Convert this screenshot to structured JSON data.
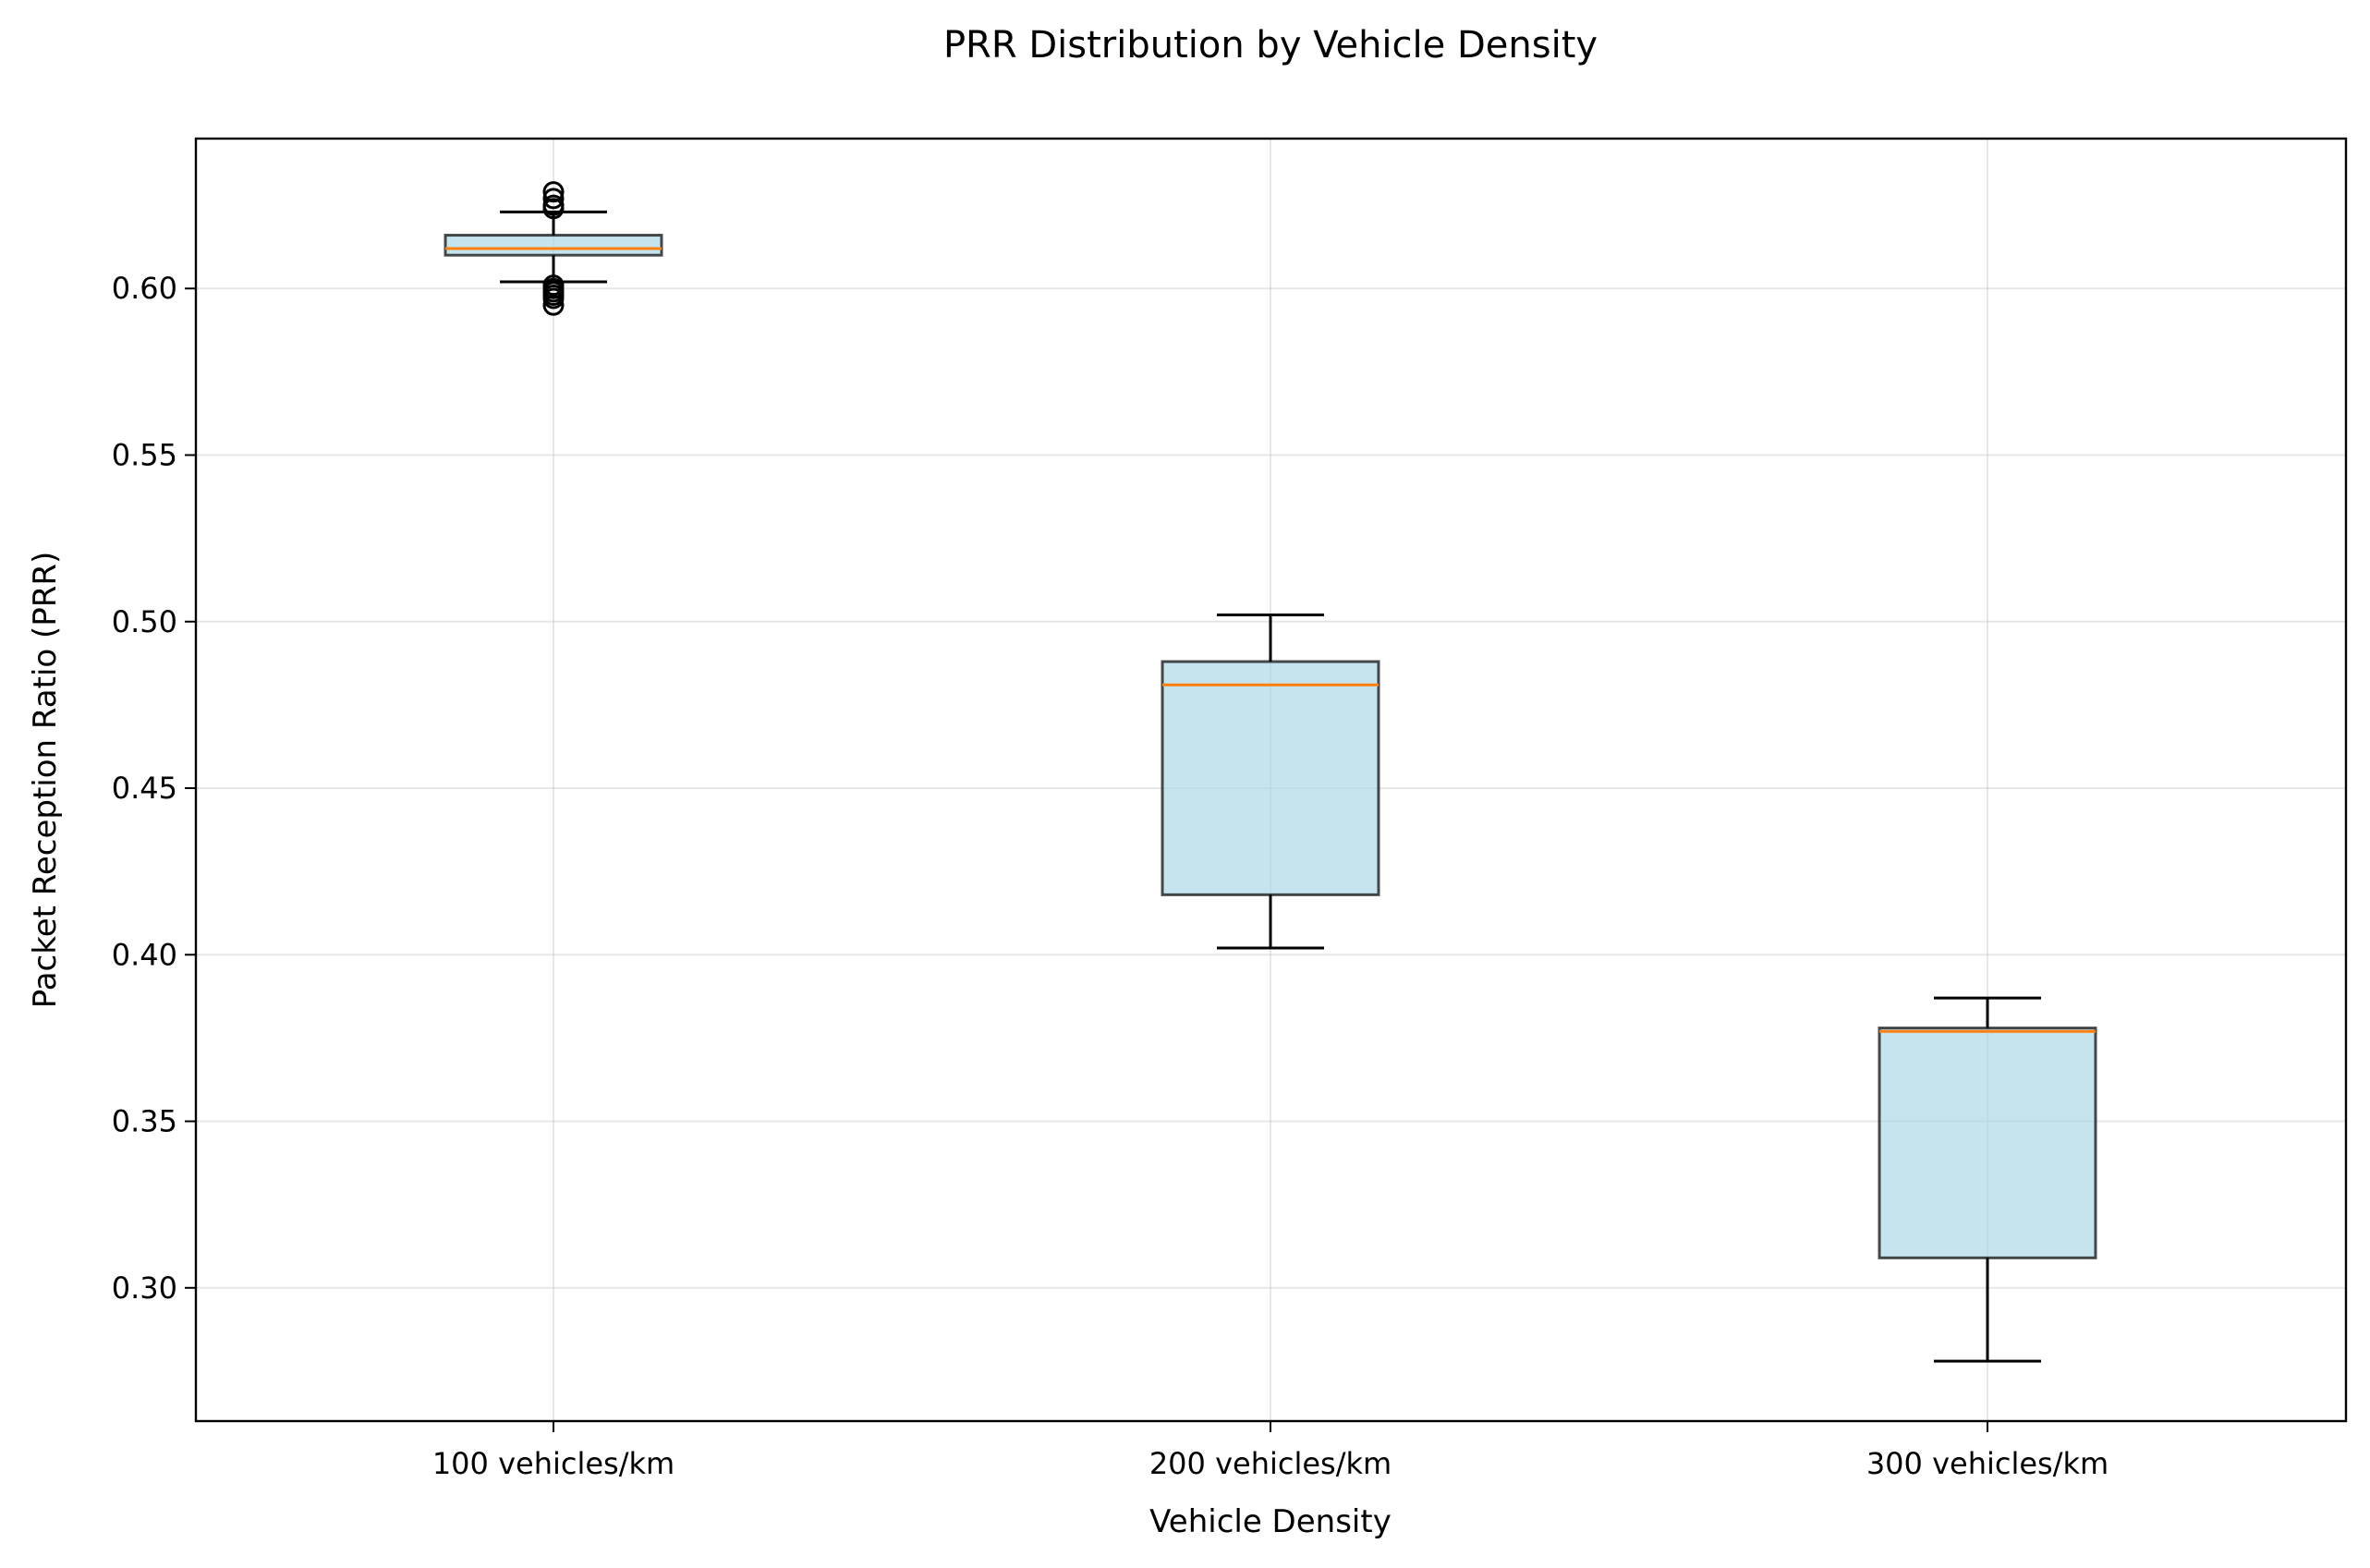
{
  "chart_data": {
    "type": "box",
    "title": "PRR Distribution by Vehicle Density",
    "xlabel": "Vehicle Density",
    "ylabel": "Packet Reception Ratio (PRR)",
    "ylim": [
      0.26,
      0.645
    ],
    "yticks": [
      0.3,
      0.35,
      0.4,
      0.45,
      0.5,
      0.55,
      0.6
    ],
    "grid": true,
    "box_color": "#add8e6",
    "median_color": "#ff7f0e",
    "categories": [
      "100 vehicles/km",
      "200 vehicles/km",
      "300 vehicles/km"
    ],
    "boxes": [
      {
        "whisker_low": 0.602,
        "q1": 0.61,
        "median": 0.612,
        "q3": 0.616,
        "whisker_high": 0.623,
        "fliers": [
          0.629,
          0.627,
          0.625,
          0.624,
          0.601,
          0.6,
          0.599,
          0.598,
          0.597,
          0.595
        ]
      },
      {
        "whisker_low": 0.402,
        "q1": 0.418,
        "median": 0.481,
        "q3": 0.488,
        "whisker_high": 0.502,
        "fliers": []
      },
      {
        "whisker_low": 0.278,
        "q1": 0.309,
        "median": 0.377,
        "q3": 0.378,
        "whisker_high": 0.387,
        "fliers": []
      }
    ]
  }
}
